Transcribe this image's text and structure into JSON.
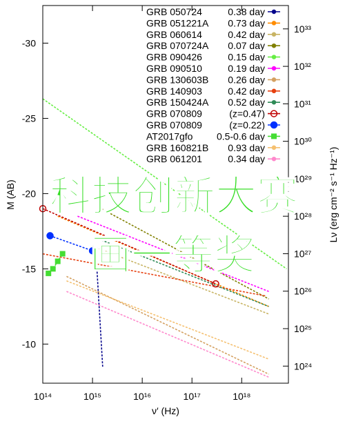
{
  "chart_data": {
    "type": "line",
    "xscale": "log",
    "y2scale": "log",
    "xlabel": "ν′ (Hz)",
    "ylabel": "M (AB)",
    "y2label": "Lν (erg cm⁻² s⁻¹ Hz⁻¹)",
    "xlim": [
      100000000000000.0,
      8.7e+18
    ],
    "ylim": [
      -7.4,
      -32.5
    ],
    "y2lim": [
      3.5e+23,
      4.2e+33
    ],
    "xticks": [
      {
        "value": 100000000000000.0,
        "label": "10¹⁴"
      },
      {
        "value": 1000000000000000.0,
        "label": "10¹⁵"
      },
      {
        "value": 1e+16,
        "label": "10¹⁶"
      },
      {
        "value": 1e+17,
        "label": "10¹⁷"
      },
      {
        "value": 1e+18,
        "label": "10¹⁸"
      }
    ],
    "yticks": [
      -30,
      -25,
      -20,
      -15,
      -10
    ],
    "y2ticks": [
      {
        "value": 1e+24,
        "label": "10²⁴"
      },
      {
        "value": 1e+25,
        "label": "10²⁵"
      },
      {
        "value": 1e+26,
        "label": "10²⁶"
      },
      {
        "value": 1e+27,
        "label": "10²⁷"
      },
      {
        "value": 1e+28,
        "label": "10²⁸"
      },
      {
        "value": 1e+29,
        "label": "10²⁹"
      },
      {
        "value": 1e+30,
        "label": "10³⁰"
      },
      {
        "value": 1e+31,
        "label": "10³¹"
      },
      {
        "value": 1e+32,
        "label": "10³²"
      },
      {
        "value": 1e+33,
        "label": "10³³"
      }
    ],
    "legend": "upper right",
    "series": [
      {
        "name": "GRB 050724",
        "label": "0.38 day",
        "color": "#00008b",
        "marker": "dot",
        "x": [
          1200000000000000.0,
          1600000000000000.0
        ],
        "values": [
          -15.5,
          -8.5
        ]
      },
      {
        "name": "GRB 051221A",
        "label": "0.73 day",
        "color": "#ff8c00",
        "marker": "dot",
        "x": [
          200000000000000.0,
          3.5e+18
        ],
        "values": [
          -18.5,
          -12.5
        ]
      },
      {
        "name": "GRB 060614",
        "label": "0.42 day",
        "color": "#c8b464",
        "marker": "dot",
        "x": [
          1000000000000000.0,
          3.5e+18
        ],
        "values": [
          -16.5,
          -12
        ]
      },
      {
        "name": "GRB 070724A",
        "label": "0.07 day",
        "color": "#808000",
        "marker": "dot",
        "x": [
          1500000000000000.0,
          3.5e+18
        ],
        "values": [
          -19,
          -13
        ]
      },
      {
        "name": "GRB 090426",
        "label": "0.15 day",
        "color": "#66ee44",
        "marker": "dot",
        "x": [
          100000000000000.0,
          8e+18
        ],
        "values": [
          -26.3,
          -15
        ]
      },
      {
        "name": "GRB 090510",
        "label": "0.19 day",
        "color": "#ff00ff",
        "marker": "dot",
        "x": [
          500000000000000.0,
          3.5e+18
        ],
        "values": [
          -18.5,
          -13.5
        ]
      },
      {
        "name": "GRB 130603B",
        "label": "0.26 day",
        "color": "#d4a060",
        "marker": "dot",
        "x": [
          300000000000000.0,
          3.5e+18
        ],
        "values": [
          -14.5,
          -8
        ]
      },
      {
        "name": "GRB 140903",
        "label": "0.42 day",
        "color": "#e64010",
        "marker": "dot",
        "x": [
          100000000000000.0,
          3e+18
        ],
        "values": [
          -16,
          -13.2
        ]
      },
      {
        "name": "GRB 150424A",
        "label": "0.52 day",
        "color": "#2e8b57",
        "marker": "dot",
        "x": [
          1300000000000000.0,
          3.5e+18
        ],
        "values": [
          -17,
          -12.5
        ]
      },
      {
        "name": "GRB 070809",
        "label": "(z=0.47)",
        "color": "#c00000",
        "marker": "open",
        "x": [
          100000000000000.0,
          3e+17
        ],
        "values": [
          -19,
          -14
        ]
      },
      {
        "name": "GRB 070809",
        "label": "(z=0.22)",
        "color": "#0030ff",
        "marker": "big",
        "x": [
          140000000000000.0,
          1000000000000000.0
        ],
        "values": [
          -17.2,
          -16.2
        ]
      },
      {
        "name": "AT2017gfo",
        "label": "0.5-0.6 day",
        "color": "#44dd33",
        "marker": "square",
        "x": [
          130000000000000.0,
          160000000000000.0,
          200000000000000.0,
          250000000000000.0
        ],
        "values": [
          -14.7,
          -15,
          -15.5,
          -16
        ]
      },
      {
        "name": "GRB 160821B",
        "label": "0.93 day",
        "color": "#f5c070",
        "marker": "dot",
        "x": [
          300000000000000.0,
          3.5e+18
        ],
        "values": [
          -14.2,
          -9
        ]
      },
      {
        "name": "GRB 061201",
        "label": "0.34 day",
        "color": "#ff88cc",
        "marker": "dot",
        "x": [
          300000000000000.0,
          3.5e+18
        ],
        "values": [
          -13.5,
          -7.8
        ]
      }
    ]
  },
  "overlay": {
    "line1": "科技创新大赛",
    "line2": "画一等奖"
  }
}
